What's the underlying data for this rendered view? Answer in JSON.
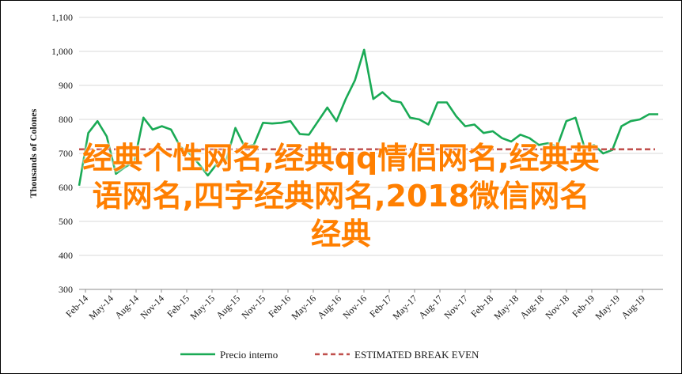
{
  "chart_data": {
    "type": "line",
    "ylabel": "Thousands of Colones",
    "ylim": [
      300,
      1100
    ],
    "yticks": [
      300,
      400,
      500,
      600,
      700,
      800,
      900,
      1000,
      1100
    ],
    "ytick_labels": [
      "300",
      "400",
      "500",
      "600",
      "700",
      "800",
      "900",
      "1,000",
      "1,100"
    ],
    "xtick_labels": [
      "Feb-14",
      "May-14",
      "Aug-14",
      "Nov-14",
      "Feb-15",
      "May-15",
      "Aug-15",
      "Nov-15",
      "Feb-16",
      "May-16",
      "Aug-16",
      "Nov-16",
      "Feb-17",
      "May-17",
      "Aug-17",
      "Nov-17",
      "Feb-18",
      "May-18",
      "Aug-18",
      "Nov-18",
      "Feb-19",
      "May-19",
      "Aug-19"
    ],
    "grid": "horizontal",
    "legend": "bottom",
    "series": [
      {
        "name": "Precio interno",
        "color": "#1aaa55",
        "style": "solid",
        "values": [
          605,
          760,
          795,
          750,
          640,
          660,
          675,
          805,
          770,
          780,
          770,
          720,
          700,
          670,
          635,
          670,
          680,
          775,
          720,
          725,
          790,
          788,
          790,
          795,
          757,
          755,
          795,
          835,
          795,
          860,
          915,
          1005,
          860,
          880,
          855,
          850,
          805,
          800,
          785,
          850,
          850,
          810,
          780,
          785,
          760,
          765,
          745,
          735,
          755,
          745,
          725,
          730,
          720,
          795,
          805,
          715,
          725,
          700,
          710,
          780,
          795,
          800,
          815,
          815
        ]
      },
      {
        "name": "ESTIMATED BREAK EVEN",
        "color": "#c0504d",
        "style": "dashed",
        "values": [
          712,
          712
        ]
      }
    ]
  },
  "overlay": {
    "line1": "经典个性网名,经典qq情侣网名,经典英",
    "line2": "语网名,四字经典网名,2018微信网名",
    "line3": "经典"
  }
}
